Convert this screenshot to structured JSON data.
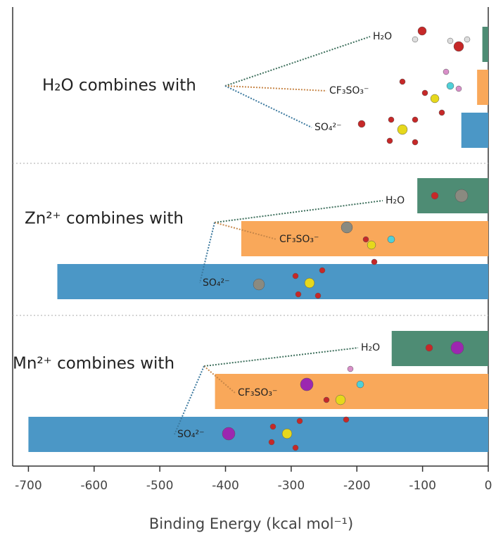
{
  "chart_data": {
    "type": "bar",
    "orientation": "horizontal",
    "categories": [
      "H₂O combines with",
      "Zn²⁺ combines with",
      "Mn²⁺ combines with"
    ],
    "series": [
      {
        "name": "H₂O",
        "color": "#4e8c74",
        "values": [
          -9,
          -108,
          -147
        ]
      },
      {
        "name": "CF₃SO₃⁻",
        "color": "#f9a85a",
        "values": [
          -17,
          -376,
          -416
        ]
      },
      {
        "name": "SO₄²⁻",
        "color": "#4b97c6",
        "values": [
          -41,
          -656,
          -700
        ]
      }
    ],
    "xlabel": "Binding Energy (kcal mol⁻¹)",
    "xlim": [
      -724,
      0
    ],
    "xticks": [
      -700,
      -600,
      -500,
      -400,
      -300,
      -200,
      -100,
      0
    ]
  }
}
